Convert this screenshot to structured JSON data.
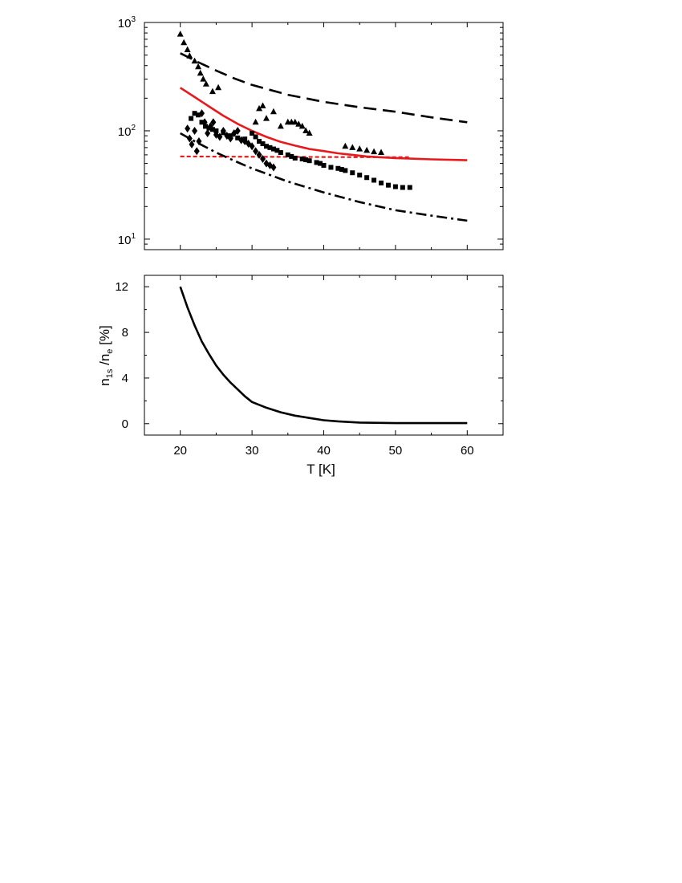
{
  "chart_data": [
    {
      "type": "scatter",
      "title": "",
      "xlabel": "",
      "ylabel": "",
      "xlim": [
        15,
        65
      ],
      "ylim": [
        8,
        1000
      ],
      "yscale": "log",
      "x_ticks": [
        20,
        30,
        40,
        50,
        60
      ],
      "y_ticks": [
        {
          "value": 10,
          "base": "10",
          "exp": "1"
        },
        {
          "value": 100,
          "base": "10",
          "exp": "2"
        },
        {
          "value": 1000,
          "base": "10",
          "exp": "3"
        }
      ],
      "grid": false,
      "legend": "none",
      "series": [
        {
          "kind": "line",
          "style": "dashed",
          "color": "#000000",
          "x": [
            20,
            22.5,
            25,
            27.5,
            30,
            35,
            40,
            45,
            50,
            55,
            60
          ],
          "y": [
            520,
            430,
            360,
            305,
            265,
            215,
            185,
            165,
            150,
            133,
            120
          ]
        },
        {
          "kind": "line",
          "style": "solid",
          "color": "#e8191c",
          "x": [
            20,
            22,
            24,
            26,
            28,
            30,
            32,
            34,
            36,
            38,
            40,
            42,
            44,
            46,
            48,
            50,
            55,
            60
          ],
          "y": [
            250,
            205,
            168,
            138,
            116,
            100,
            88,
            79,
            73,
            68,
            65,
            62,
            60,
            58,
            57,
            56,
            54.5,
            53.5
          ]
        },
        {
          "kind": "line",
          "style": "dotted",
          "color": "#e8191c",
          "x": [
            20,
            30,
            40,
            50,
            52
          ],
          "y": [
            58,
            57.6,
            57.3,
            57,
            57
          ]
        },
        {
          "kind": "line",
          "style": "dashdot",
          "color": "#000000",
          "x": [
            20,
            22,
            25,
            27.5,
            30,
            35,
            40,
            45,
            50,
            55,
            60
          ],
          "y": [
            95,
            80,
            63,
            53,
            45,
            34,
            27,
            22,
            18.5,
            16.5,
            14.8
          ]
        },
        {
          "kind": "markers",
          "marker": "triangle",
          "color": "#000000",
          "x": [
            20,
            20.5,
            21,
            21.3,
            22,
            22.5,
            22.8,
            23.2,
            23.6,
            24.5,
            25.3,
            30.5,
            31,
            31.5,
            32,
            33,
            34,
            35,
            35.5,
            36,
            36.5,
            37,
            37.5,
            38,
            43,
            44,
            45,
            46,
            47,
            48
          ],
          "y": [
            780,
            650,
            560,
            490,
            440,
            390,
            340,
            300,
            270,
            230,
            250,
            120,
            160,
            170,
            130,
            150,
            110,
            120,
            120,
            120,
            115,
            110,
            100,
            95,
            72,
            70,
            68,
            66,
            64,
            63
          ]
        },
        {
          "kind": "markers",
          "marker": "diamond",
          "color": "#000000",
          "x": [
            21,
            21.3,
            21.6,
            22,
            22.3,
            22.6,
            23,
            23.4,
            23.8,
            24.2,
            24.6,
            25,
            25.5,
            26,
            26.5,
            27,
            27.5,
            28,
            28.5,
            29,
            29.5,
            30,
            30.5,
            31,
            31.5,
            32,
            32.5,
            33
          ],
          "y": [
            105,
            85,
            75,
            100,
            65,
            80,
            145,
            120,
            95,
            110,
            120,
            92,
            88,
            100,
            90,
            85,
            95,
            100,
            82,
            80,
            76,
            72,
            65,
            60,
            55,
            50,
            48,
            46
          ]
        },
        {
          "kind": "markers",
          "marker": "square",
          "color": "#000000",
          "x": [
            21.5,
            22,
            22.5,
            23,
            23.5,
            24,
            24.5,
            25,
            26,
            27,
            28,
            29,
            30,
            30.5,
            31,
            31.5,
            32,
            32.5,
            33,
            33.5,
            34,
            35,
            35.5,
            36,
            37,
            37.5,
            38,
            39,
            39.5,
            40,
            41,
            42,
            42.5,
            43,
            44,
            45,
            46,
            47,
            48,
            49,
            50,
            51,
            52
          ],
          "y": [
            130,
            145,
            140,
            120,
            110,
            106,
            103,
            100,
            96,
            90,
            86,
            84,
            95,
            88,
            80,
            76,
            72,
            70,
            68,
            66,
            63,
            60,
            58,
            56,
            55,
            54,
            53,
            51,
            50,
            48,
            46,
            45,
            44,
            43,
            41,
            39,
            37,
            35,
            33,
            31.5,
            30.5,
            30,
            30
          ]
        }
      ]
    },
    {
      "type": "line",
      "title": "",
      "xlabel": "T [K]",
      "ylabel_parts": {
        "n": "n",
        "sub1": "1s",
        "slash": " /n",
        "sub2": "e",
        "unit": " [%]"
      },
      "xlim": [
        15,
        65
      ],
      "ylim": [
        -1,
        13
      ],
      "yscale": "linear",
      "x_ticks": [
        20,
        30,
        40,
        50,
        60
      ],
      "y_ticks": [
        0,
        4,
        8,
        12
      ],
      "grid": false,
      "legend": "none",
      "series": [
        {
          "kind": "line",
          "style": "solid",
          "color": "#000000",
          "x": [
            20,
            21,
            22,
            23,
            24,
            25,
            26,
            27,
            28,
            29,
            30,
            32,
            34,
            36,
            38,
            40,
            42,
            45,
            50,
            55,
            60
          ],
          "y": [
            12,
            10.2,
            8.6,
            7.2,
            6.1,
            5.1,
            4.3,
            3.6,
            3.0,
            2.4,
            1.9,
            1.4,
            1.0,
            0.7,
            0.5,
            0.3,
            0.2,
            0.1,
            0.05,
            0.05,
            0.05
          ]
        }
      ]
    }
  ]
}
